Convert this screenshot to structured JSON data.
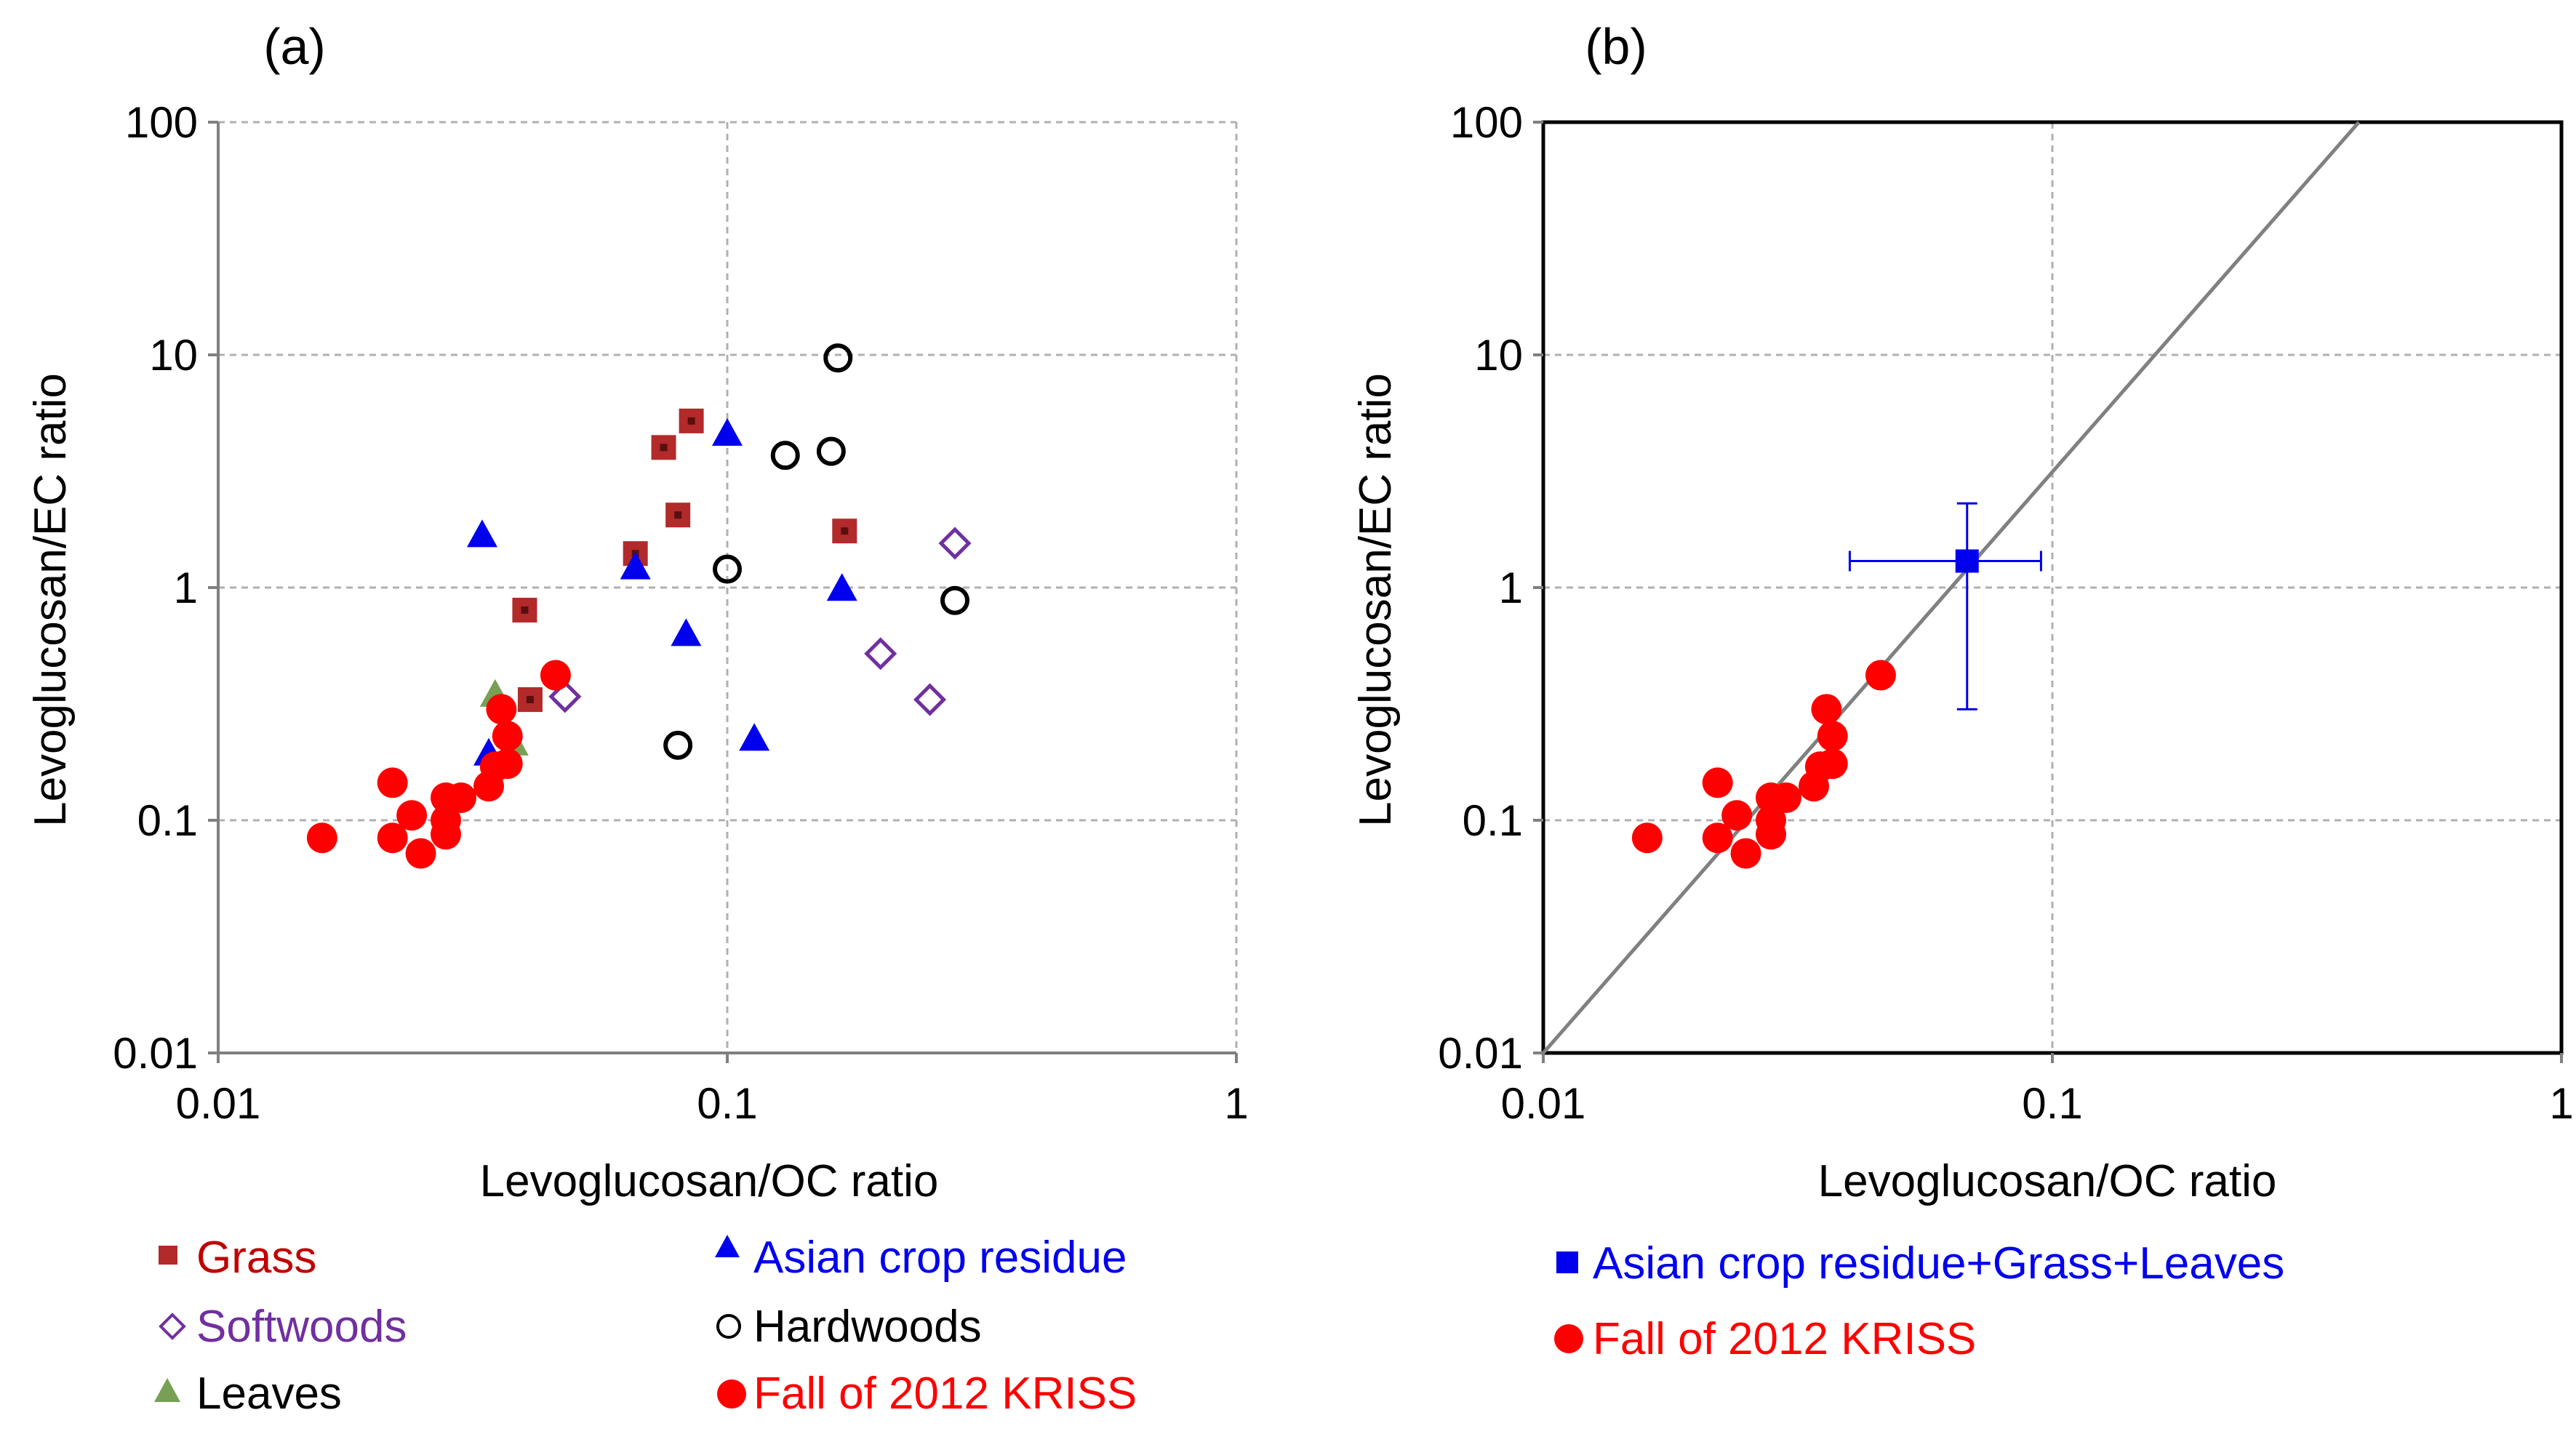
{
  "chart_data": [
    {
      "type": "scatter",
      "panel_label": "(a)",
      "xlabel": "Levoglucosan/OC ratio",
      "ylabel": "Levoglucosan/EC ratio",
      "xscale": "log",
      "yscale": "log",
      "xlim": [
        0.01,
        1
      ],
      "ylim": [
        0.01,
        100
      ],
      "xticks": [
        0.01,
        0.1,
        1
      ],
      "xtick_labels": [
        "0.01",
        "0.1",
        "1"
      ],
      "yticks": [
        0.01,
        0.1,
        1,
        10,
        100
      ],
      "ytick_labels": [
        "0.01",
        "0.1",
        "1",
        "10",
        "100"
      ],
      "grid": true,
      "series": [
        {
          "name": "Grass",
          "marker": "square",
          "color": "#b22a2a",
          "points": [
            [
              0.04,
              0.8
            ],
            [
              0.041,
              0.33
            ],
            [
              0.066,
              1.4
            ],
            [
              0.075,
              4.0
            ],
            [
              0.08,
              2.05
            ],
            [
              0.085,
              5.2
            ],
            [
              0.17,
              1.75
            ]
          ]
        },
        {
          "name": "Asian crop residue",
          "marker": "triangle",
          "color": "#0000ee",
          "points": [
            [
              0.033,
              1.65
            ],
            [
              0.034,
              0.19
            ],
            [
              0.066,
              1.2
            ],
            [
              0.083,
              0.62
            ],
            [
              0.1,
              4.5
            ],
            [
              0.113,
              0.22
            ],
            [
              0.168,
              0.97
            ]
          ]
        },
        {
          "name": "Softwoods",
          "marker": "diamond-open",
          "color": "#7030a0",
          "points": [
            [
              0.048,
              0.34
            ],
            [
              0.2,
              0.52
            ],
            [
              0.25,
              0.33
            ],
            [
              0.28,
              1.55
            ]
          ]
        },
        {
          "name": "Hardwoods",
          "marker": "circle-open",
          "color": "#000000",
          "points": [
            [
              0.08,
              0.21
            ],
            [
              0.1,
              1.2
            ],
            [
              0.13,
              3.7
            ],
            [
              0.16,
              3.85
            ],
            [
              0.165,
              9.7
            ],
            [
              0.28,
              0.88
            ]
          ]
        },
        {
          "name": "Leaves",
          "marker": "triangle",
          "color": "#77a055",
          "points": [
            [
              0.035,
              0.34
            ],
            [
              0.038,
              0.21
            ]
          ]
        },
        {
          "name": "Fall of 2012 KRISS",
          "marker": "circle",
          "color": "#ff0000",
          "points": [
            [
              0.016,
              0.084
            ],
            [
              0.022,
              0.145
            ],
            [
              0.022,
              0.084
            ],
            [
              0.024,
              0.105
            ],
            [
              0.025,
              0.072
            ],
            [
              0.028,
              0.125
            ],
            [
              0.028,
              0.1
            ],
            [
              0.028,
              0.087
            ],
            [
              0.03,
              0.125
            ],
            [
              0.034,
              0.14
            ],
            [
              0.035,
              0.17
            ],
            [
              0.036,
              0.3
            ],
            [
              0.037,
              0.23
            ],
            [
              0.037,
              0.175
            ],
            [
              0.046,
              0.42
            ]
          ]
        }
      ],
      "legend": {
        "position": "bottom",
        "entries": [
          "Grass",
          "Asian crop residue",
          "Softwoods",
          "Hardwoods",
          "Leaves",
          "Fall of 2012 KRISS"
        ]
      }
    },
    {
      "type": "scatter",
      "panel_label": "(b)",
      "xlabel": "Levoglucosan/OC ratio",
      "ylabel": "Levoglucosan/EC ratio",
      "xscale": "log",
      "yscale": "log",
      "xlim": [
        0.01,
        1
      ],
      "ylim": [
        0.01,
        100
      ],
      "xticks": [
        0.01,
        0.1,
        1
      ],
      "xtick_labels": [
        "0.01",
        "0.1",
        "1"
      ],
      "yticks": [
        0.01,
        0.1,
        1,
        10,
        100
      ],
      "ytick_labels": [
        "0.01",
        "0.1",
        "1",
        "10",
        "100"
      ],
      "grid": true,
      "reference_line": {
        "from": [
          0.01,
          0.01
        ],
        "to": [
          0.4,
          100
        ],
        "color": "#808080"
      },
      "series": [
        {
          "name": "Asian crop residue+Grass+Leaves",
          "marker": "square",
          "color": "#0000ee",
          "points": [
            [
              0.068,
              1.3
            ]
          ],
          "xerr": [
            [
              0.04,
              0.095
            ]
          ],
          "yerr": [
            [
              0.3,
              2.3
            ]
          ]
        },
        {
          "name": "Fall of 2012 KRISS",
          "marker": "circle",
          "color": "#ff0000",
          "points": [
            [
              0.016,
              0.084
            ],
            [
              0.022,
              0.145
            ],
            [
              0.022,
              0.084
            ],
            [
              0.024,
              0.105
            ],
            [
              0.025,
              0.072
            ],
            [
              0.028,
              0.125
            ],
            [
              0.028,
              0.1
            ],
            [
              0.028,
              0.087
            ],
            [
              0.03,
              0.125
            ],
            [
              0.034,
              0.14
            ],
            [
              0.035,
              0.17
            ],
            [
              0.036,
              0.3
            ],
            [
              0.037,
              0.23
            ],
            [
              0.037,
              0.175
            ],
            [
              0.046,
              0.42
            ]
          ]
        }
      ],
      "legend": {
        "position": "bottom",
        "entries": [
          "Asian crop residue+Grass+Leaves",
          "Fall of 2012 KRISS"
        ]
      }
    }
  ]
}
